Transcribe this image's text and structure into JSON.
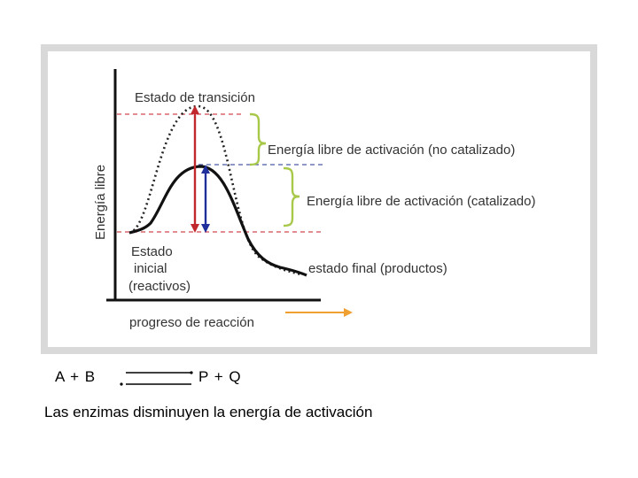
{
  "diagram": {
    "y_axis_label": "Energía libre",
    "x_axis_label": "progreso de reacción",
    "transition_state_label": "Estado de transición",
    "uncatalyzed_label": "Energía libre de activación (no catalizado)",
    "catalyzed_label": "Energía libre de activación  (catalizado)",
    "initial_state_lines": [
      "Estado",
      "inicial",
      "(reactivos)"
    ],
    "final_state_label": "estado final (productos)",
    "colors": {
      "uncatalyzed_arrow": "#c0282d",
      "catalyzed_arrow": "#1f2f9c",
      "brace": "#a8c84a",
      "progress_arrow": "#f0a030",
      "red_dash": "#d0494f",
      "blue_dash": "#4a5aa8"
    }
  },
  "equation": {
    "reactants": "A + B",
    "products": "P + Q"
  },
  "caption": "Las enzimas disminuyen la energía de activación"
}
